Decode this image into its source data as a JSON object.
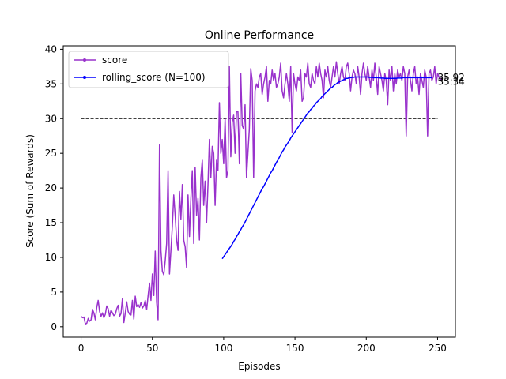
{
  "chart_data": {
    "type": "line",
    "title": "Online Performance",
    "xlabel": "Episodes",
    "ylabel": "Score (Sum of Rewards)",
    "xlim": [
      -12.5,
      262.5
    ],
    "ylim": [
      -1.5,
      40.5
    ],
    "xticks": [
      0,
      50,
      100,
      150,
      200,
      250
    ],
    "yticks": [
      0,
      5,
      10,
      15,
      20,
      25,
      30,
      35,
      40
    ],
    "grid": false,
    "legend_position": "top-left",
    "target_line": {
      "y": 30,
      "x_start": 0,
      "x_end": 250,
      "style": "dashed",
      "color": "#000000"
    },
    "annotations": [
      {
        "text": "35.92",
        "x": 250,
        "y": 35.92
      },
      {
        "text": "35.34",
        "x": 250,
        "y": 35.34
      }
    ],
    "series": [
      {
        "name": "score",
        "color": "#9932CC",
        "x_start": 0,
        "values": [
          1.5,
          1.3,
          1.4,
          0.4,
          0.5,
          1.2,
          0.8,
          1.0,
          2.5,
          2.0,
          1.0,
          2.8,
          3.8,
          2.2,
          1.5,
          2.0,
          1.3,
          1.8,
          3.0,
          2.6,
          1.5,
          2.4,
          2.0,
          1.6,
          1.8,
          2.6,
          3.1,
          1.5,
          1.9,
          4.1,
          0.6,
          2.0,
          3.6,
          2.2,
          1.8,
          1.7,
          3.8,
          1.1,
          4.4,
          2.9,
          3.2,
          2.8,
          3.5,
          2.7,
          3.0,
          3.8,
          2.5,
          4.5,
          6.3,
          3.8,
          7.6,
          4.5,
          10.9,
          3.5,
          1.0,
          26.2,
          11.0,
          8.0,
          7.5,
          9.5,
          12.0,
          22.5,
          7.6,
          11.0,
          14.5,
          19.0,
          16.0,
          12.5,
          11.0,
          19.5,
          15.5,
          20.5,
          12.5,
          11.5,
          8.5,
          19.0,
          13.0,
          18.5,
          22.5,
          12.0,
          23.0,
          16.0,
          18.5,
          12.5,
          21.5,
          24.0,
          17.5,
          21.0,
          15.0,
          20.5,
          27.0,
          21.5,
          26.0,
          25.0,
          17.5,
          24.0,
          22.5,
          32.3,
          25.0,
          27.0,
          23.5,
          30.0,
          21.5,
          22.5,
          37.5,
          24.5,
          29.5,
          30.5,
          25.0,
          31.0,
          31.0,
          23.5,
          36.5,
          29.0,
          28.5,
          32.0,
          21.5,
          25.0,
          28.5,
          37.2,
          35.5,
          21.5,
          34.0,
          35.0,
          34.5,
          36.0,
          36.5,
          33.5,
          35.0,
          36.0,
          37.5,
          32.5,
          35.5,
          35.0,
          37.0,
          35.5,
          36.5,
          34.5,
          35.0,
          36.0,
          38.0,
          34.0,
          33.0,
          35.0,
          36.5,
          35.0,
          32.5,
          37.5,
          28.0,
          36.5,
          35.0,
          34.0,
          36.0,
          35.5,
          37.0,
          32.5,
          33.0,
          36.5,
          36.0,
          38.0,
          35.0,
          34.5,
          36.5,
          35.5,
          35.0,
          37.5,
          36.0,
          38.0,
          36.5,
          35.5,
          33.0,
          37.0,
          36.0,
          37.5,
          35.5,
          34.5,
          36.0,
          37.5,
          36.0,
          38.2,
          36.5,
          35.0,
          36.5,
          37.5,
          36.0,
          35.5,
          37.5,
          38.0,
          36.5,
          34.0,
          36.0,
          37.0,
          36.5,
          35.0,
          37.5,
          36.0,
          33.5,
          36.5,
          38.0,
          36.5,
          35.5,
          37.5,
          36.0,
          34.5,
          37.0,
          35.5,
          38.0,
          36.0,
          33.5,
          37.5,
          36.5,
          35.5,
          34.0,
          36.5,
          35.5,
          32.0,
          37.0,
          35.5,
          37.5,
          34.0,
          36.5,
          35.0,
          37.0,
          36.0,
          36.5,
          35.5,
          37.5,
          36.5,
          27.5,
          36.0,
          37.0,
          35.5,
          34.0,
          36.5,
          37.5,
          35.0,
          36.0,
          33.5,
          36.5,
          35.5,
          34.5,
          37.0,
          36.0,
          27.5,
          36.5,
          37.0,
          35.5,
          36.0,
          37.5,
          35.0,
          36.5,
          36.0,
          35.5,
          35.9
        ]
      },
      {
        "name": "rolling_score (N=100)",
        "color": "#0000FF",
        "x_start": 99,
        "values": [
          9.8,
          10.1,
          10.4,
          10.7,
          11.0,
          11.3,
          11.6,
          11.9,
          12.3,
          12.6,
          13.0,
          13.3,
          13.7,
          14.0,
          14.4,
          14.7,
          15.1,
          15.5,
          15.9,
          16.3,
          16.7,
          17.1,
          17.5,
          17.9,
          18.3,
          18.7,
          19.1,
          19.5,
          19.9,
          20.2,
          20.6,
          21.0,
          21.4,
          21.8,
          22.2,
          22.5,
          22.9,
          23.3,
          23.7,
          24.0,
          24.4,
          24.8,
          25.2,
          25.5,
          25.9,
          26.2,
          26.5,
          26.8,
          27.2,
          27.5,
          27.8,
          28.1,
          28.4,
          28.7,
          29.0,
          29.3,
          29.6,
          29.9,
          30.2,
          30.5,
          30.8,
          31.0,
          31.3,
          31.5,
          31.8,
          32.0,
          32.3,
          32.5,
          32.7,
          32.9,
          33.2,
          33.4,
          33.6,
          33.8,
          34.0,
          34.2,
          34.4,
          34.5,
          34.7,
          34.9,
          35.0,
          35.2,
          35.3,
          35.4,
          35.5,
          35.6,
          35.7,
          35.8,
          35.8,
          35.9,
          35.9,
          35.95,
          35.95,
          36.0,
          36.0,
          36.0,
          36.0,
          36.0,
          36.0,
          36.0,
          36.0,
          36.0,
          36.0,
          35.95,
          35.95,
          35.95,
          35.9,
          35.9,
          35.9,
          35.9,
          35.9,
          35.85,
          35.85,
          35.85,
          35.8,
          35.8,
          35.8,
          35.8,
          35.8,
          35.8,
          35.8,
          35.8,
          35.8,
          35.85,
          35.85,
          35.85,
          35.85,
          35.9,
          35.9,
          35.9,
          35.9,
          35.9,
          35.9,
          35.9,
          35.9,
          35.9,
          35.9,
          35.9,
          35.9,
          35.9,
          35.9,
          35.9,
          35.9,
          35.9,
          35.9,
          35.9,
          35.9,
          35.92
        ]
      }
    ]
  }
}
